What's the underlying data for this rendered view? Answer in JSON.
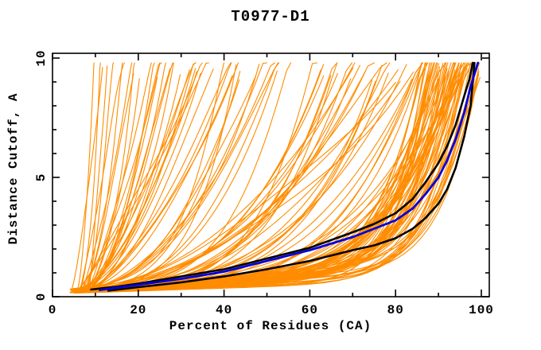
{
  "window": {
    "background": "#ffffff"
  },
  "chart_data": {
    "type": "line",
    "title": "T0977-D1",
    "xlabel": "Percent of Residues (CA)",
    "ylabel": "Distance Cutoff, A",
    "xlim": [
      0,
      101.8
    ],
    "ylim": [
      0,
      10.2
    ],
    "grid": false,
    "legend": "none",
    "x_ticks_major": [
      0,
      20,
      40,
      60,
      80,
      100
    ],
    "x_ticks_minor": [
      10,
      30,
      50,
      70,
      90
    ],
    "y_ticks_major": [
      0,
      5,
      10
    ],
    "y_ticks_minor": [
      1,
      2,
      3,
      4,
      6,
      7,
      8,
      9
    ],
    "colors": {
      "frame": "#000000",
      "ensemble": "#ff8c00",
      "highlight_black": "#000000",
      "highlight_blue": "#0000dd"
    },
    "series": [
      {
        "name": "highlight-model-black-1",
        "color": "#000000",
        "width": 2.6,
        "points": [
          [
            9,
            0.3
          ],
          [
            15,
            0.42
          ],
          [
            20,
            0.55
          ],
          [
            30,
            0.85
          ],
          [
            40,
            1.15
          ],
          [
            50,
            1.6
          ],
          [
            60,
            2.05
          ],
          [
            70,
            2.7
          ],
          [
            75,
            3.05
          ],
          [
            80,
            3.5
          ],
          [
            84,
            4.1
          ],
          [
            87,
            4.8
          ],
          [
            90,
            5.6
          ],
          [
            92,
            6.3
          ],
          [
            94,
            7.2
          ],
          [
            96,
            8.4
          ],
          [
            97.2,
            9.1
          ],
          [
            98,
            9.8
          ]
        ]
      },
      {
        "name": "highlight-model-black-2",
        "color": "#000000",
        "width": 2.6,
        "points": [
          [
            13,
            0.25
          ],
          [
            20,
            0.4
          ],
          [
            30,
            0.6
          ],
          [
            40,
            0.85
          ],
          [
            50,
            1.15
          ],
          [
            60,
            1.5
          ],
          [
            70,
            1.95
          ],
          [
            75,
            2.15
          ],
          [
            80,
            2.45
          ],
          [
            84,
            2.85
          ],
          [
            87,
            3.3
          ],
          [
            90,
            3.9
          ],
          [
            92,
            4.5
          ],
          [
            94,
            5.4
          ],
          [
            96,
            6.7
          ],
          [
            97.5,
            8.0
          ],
          [
            98.4,
            9.8
          ]
        ]
      },
      {
        "name": "highlight-model-blue",
        "color": "#0000dd",
        "width": 2.8,
        "points": [
          [
            11,
            0.28
          ],
          [
            20,
            0.5
          ],
          [
            30,
            0.75
          ],
          [
            40,
            1.05
          ],
          [
            50,
            1.5
          ],
          [
            60,
            1.95
          ],
          [
            70,
            2.5
          ],
          [
            75,
            2.85
          ],
          [
            80,
            3.2
          ],
          [
            84,
            3.7
          ],
          [
            87,
            4.3
          ],
          [
            90,
            5.0
          ],
          [
            92,
            5.7
          ],
          [
            94,
            6.6
          ],
          [
            96,
            7.7
          ],
          [
            97.5,
            8.8
          ],
          [
            99.2,
            9.8
          ]
        ]
      }
    ],
    "ensemble": {
      "name": "server-models",
      "color": "#ff8c00",
      "count": 150,
      "seed": 7,
      "width": 1.1,
      "start_x_range": [
        4,
        9
      ],
      "start_y_range": [
        0.15,
        0.35
      ],
      "top_y": 9.8,
      "groups": [
        {
          "weight": 0.54,
          "top_x_range": [
            86,
            100
          ],
          "exponent_range": [
            4,
            12
          ]
        },
        {
          "weight": 0.22,
          "top_x_range": [
            40,
            88
          ],
          "exponent_range": [
            1.8,
            4.5
          ]
        },
        {
          "weight": 0.24,
          "top_x_range": [
            9,
            45
          ],
          "exponent_range": [
            1.05,
            2.2
          ]
        }
      ]
    }
  }
}
